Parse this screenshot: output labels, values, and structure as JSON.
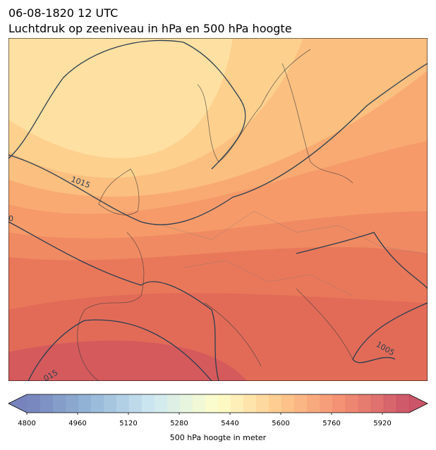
{
  "header": {
    "title": "06-08-1820 12 UTC",
    "subtitle": "Luchtdruk op zeeniveau in hPa en 500 hPa hoogte"
  },
  "contour_labels": [
    "1015",
    "0",
    "1005",
    "015"
  ],
  "colorbar": {
    "ticks": [
      "4800",
      "4960",
      "5120",
      "5280",
      "5440",
      "5600",
      "5760",
      "5920"
    ],
    "label": "500 hPa hoogte in meter"
  }
}
